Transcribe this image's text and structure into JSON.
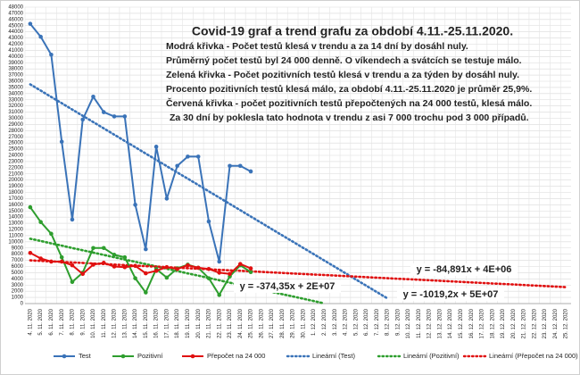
{
  "chart_data": {
    "type": "line",
    "title": "Covid-19 graf a trend grafu za období 4.11.-25.11.2020.",
    "annotations": [
      {
        "text": "Modrá křivka - Počet testů klesá v trendu a za 14 dní by dosáhl nuly.",
        "color": "#000000"
      },
      {
        "text": "Průměrný počet testů byl 24 000 denně. O víkendech a svátcích se testuje málo.",
        "color": "#000000"
      },
      {
        "text": "Zelená křivka - Počet pozitivních testů klesá v trendu a za týden by dosáhl nuly.",
        "color": "#000000"
      },
      {
        "text": "Procento pozitivních testů klesá málo, za období 4.11.-25.11.2020 je průměr  25,9%.",
        "color": "#000000"
      },
      {
        "text": "Červená křivka - počet pozitivních testů přepočtených na 24 000 testů, klesá málo.",
        "color": "#e01010"
      },
      {
        "text": "Za 30 dní by poklesla tato hodnota v trendu z asi 7 000 trochu pod  3 000 případů.",
        "color": "#000000"
      }
    ],
    "equations": [
      {
        "text": "y = -84,891x + 4E+06",
        "color": "#e01010"
      },
      {
        "text": "y = -374,35x + 2E+07",
        "color": "#2e9e2e"
      },
      {
        "text": "y = -1019,2x + 5E+07",
        "color": "#3a73b8"
      }
    ],
    "categories": [
      "4. 11. 2020",
      "5. 11. 2020",
      "6. 11. 2020",
      "7. 11. 2020",
      "8. 11. 2020",
      "9. 11. 2020",
      "10. 11. 2020",
      "11. 11. 2020",
      "12. 11. 2020",
      "13. 11. 2020",
      "14. 11. 2020",
      "15. 11. 2020",
      "16. 11. 2020",
      "17. 11. 2020",
      "18. 11. 2020",
      "19. 11. 2020",
      "20. 11. 2020",
      "21. 11. 2020",
      "22. 11. 2020",
      "23. 11. 2020",
      "24. 11. 2020",
      "25. 11. 2020",
      "26. 11. 2020",
      "27. 11. 2020",
      "28. 11. 2020",
      "29. 11. 2020",
      "30. 11. 2020",
      "1. 12. 2020",
      "2. 12. 2020",
      "3. 12. 2020",
      "4. 12. 2020",
      "5. 12. 2020",
      "6. 12. 2020",
      "7. 12. 2020",
      "8. 12. 2020",
      "9. 12. 2020",
      "10. 12. 2020",
      "11. 12. 2020",
      "12. 12. 2020",
      "13. 12. 2020",
      "14. 12. 2020",
      "15. 12. 2020",
      "16. 12. 2020",
      "17. 12. 2020",
      "18. 12. 2020",
      "19. 12. 2020",
      "20. 12. 2020",
      "21. 12. 2020",
      "22. 12. 2020",
      "23. 12. 2020",
      "24. 12. 2020",
      "25. 12. 2020"
    ],
    "series": [
      {
        "name": "Test",
        "color": "#3a73b8",
        "line_style": "solid",
        "markers": true,
        "values": [
          45300,
          43200,
          40300,
          26200,
          13600,
          29800,
          33500,
          31000,
          30300,
          30300,
          16000,
          8800,
          25400,
          17000,
          22300,
          23800,
          23800,
          13300,
          6800,
          22300,
          22300,
          21400,
          null,
          null,
          null,
          null,
          null,
          null,
          null,
          null,
          null,
          null,
          null,
          null,
          null,
          null,
          null,
          null,
          null,
          null,
          null,
          null,
          null,
          null,
          null,
          null,
          null,
          null,
          null,
          null,
          null,
          null
        ]
      },
      {
        "name": "Pozitivní",
        "color": "#2e9e2e",
        "line_style": "solid",
        "markers": true,
        "values": [
          15600,
          13200,
          11300,
          7500,
          3500,
          5000,
          9000,
          9000,
          7900,
          7500,
          4100,
          1800,
          5600,
          4200,
          5700,
          6300,
          5800,
          4100,
          1400,
          4400,
          6200,
          5100,
          null,
          null,
          null,
          null,
          null,
          null,
          null,
          null,
          null,
          null,
          null,
          null,
          null,
          null,
          null,
          null,
          null,
          null,
          null,
          null,
          null,
          null,
          null,
          null,
          null,
          null,
          null,
          null,
          null,
          null
        ]
      },
      {
        "name": "Přepočet na 24 000",
        "color": "#e01010",
        "line_style": "solid",
        "markers": true,
        "values": [
          8200,
          7300,
          6800,
          6800,
          6200,
          4800,
          6300,
          6600,
          6000,
          5900,
          6100,
          4900,
          5300,
          5900,
          5600,
          6200,
          5800,
          5600,
          5000,
          4800,
          6400,
          5700,
          null,
          null,
          null,
          null,
          null,
          null,
          null,
          null,
          null,
          null,
          null,
          null,
          null,
          null,
          null,
          null,
          null,
          null,
          null,
          null,
          null,
          null,
          null,
          null,
          null,
          null,
          null,
          null,
          null,
          null
        ]
      },
      {
        "name": "Lineární (Test)",
        "color": "#3a73b8",
        "line_style": "dotted",
        "markers": false,
        "values": [
          35500,
          34480,
          33460,
          32440,
          31420,
          30410,
          29390,
          28370,
          27350,
          26330,
          25310,
          24290,
          23270,
          22250,
          21230,
          20220,
          19200,
          18180,
          17160,
          16140,
          15120,
          14100,
          13080,
          12060,
          11040,
          10030,
          9010,
          7990,
          6970,
          5950,
          4930,
          3910,
          2890,
          1870,
          850,
          null,
          null,
          null,
          null,
          null,
          null,
          null,
          null,
          null,
          null,
          null,
          null,
          null,
          null,
          null,
          null,
          null
        ]
      },
      {
        "name": "Lineární (Pozitivní)",
        "color": "#2e9e2e",
        "line_style": "dotted",
        "markers": false,
        "values": [
          10500,
          10130,
          9750,
          9380,
          9000,
          8630,
          8260,
          7880,
          7510,
          7130,
          6760,
          6390,
          6010,
          5640,
          5260,
          4890,
          4520,
          4140,
          3770,
          3390,
          3020,
          2650,
          2270,
          1900,
          1520,
          1150,
          780,
          400,
          30,
          null,
          null,
          null,
          null,
          null,
          null,
          null,
          null,
          null,
          null,
          null,
          null,
          null,
          null,
          null,
          null,
          null,
          null,
          null,
          null,
          null,
          null,
          null
        ]
      },
      {
        "name": "Lineární (Přepočet na 24 000)",
        "color": "#e01010",
        "line_style": "dotted",
        "markers": false,
        "values": [
          7000,
          6915,
          6830,
          6745,
          6660,
          6575,
          6490,
          6405,
          6320,
          6235,
          6150,
          6065,
          5980,
          5895,
          5810,
          5725,
          5640,
          5555,
          5470,
          5385,
          5300,
          5215,
          5130,
          5045,
          4960,
          4875,
          4790,
          4705,
          4620,
          4535,
          4450,
          4365,
          4280,
          4195,
          4110,
          4025,
          3940,
          3855,
          3770,
          3685,
          3600,
          3515,
          3430,
          3345,
          3260,
          3175,
          3090,
          3005,
          2920,
          2835,
          2750,
          2665
        ]
      }
    ],
    "ylim": [
      0,
      48000
    ],
    "yticks": [
      0,
      1000,
      2000,
      3000,
      4000,
      5000,
      6000,
      7000,
      8000,
      9000,
      10000,
      11000,
      12000,
      13000,
      14000,
      15000,
      16000,
      17000,
      18000,
      19000,
      20000,
      21000,
      22000,
      23000,
      24000,
      25000,
      26000,
      27000,
      28000,
      29000,
      30000,
      31000,
      32000,
      33000,
      34000,
      35000,
      36000,
      37000,
      38000,
      39000,
      40000,
      41000,
      42000,
      43000,
      44000,
      45000,
      46000,
      47000,
      48000
    ],
    "grid": true,
    "legend": "bottom"
  }
}
